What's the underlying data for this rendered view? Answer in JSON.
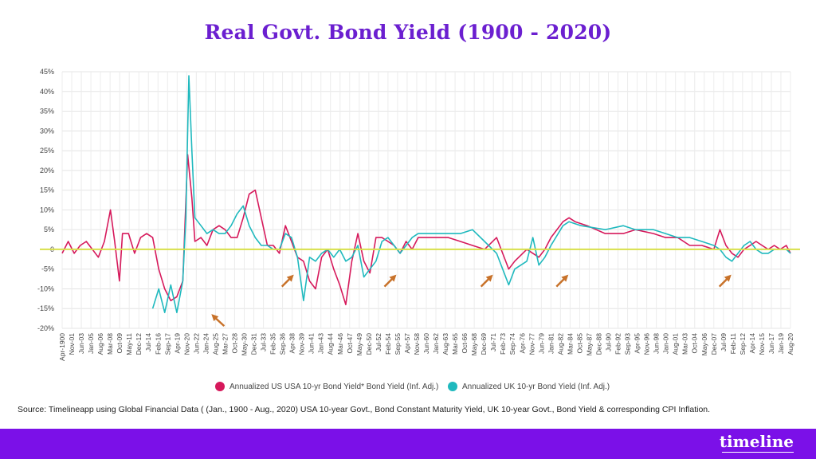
{
  "title": "Real Govt. Bond Yield  (1900 - 2020)",
  "chart_data": {
    "type": "line",
    "ylim": [
      -20,
      45
    ],
    "y_ticks": [
      "45%",
      "40%",
      "35%",
      "30%",
      "25%",
      "20%",
      "15%",
      "10%",
      "5%",
      "0",
      "-5%",
      "-10%",
      "-15%",
      "-20%"
    ],
    "x_ticks": [
      "Apr-1900",
      "Nov-01",
      "Jun-03",
      "Jan-05",
      "Aug-06",
      "Mar-08",
      "Oct-09",
      "May-11",
      "Dec-12",
      "Jul-14",
      "Feb-16",
      "Sep-17",
      "Apr-19",
      "Nov-20",
      "Jun-22",
      "Jan-24",
      "Aug-25",
      "Mar-27",
      "Oct-28",
      "May-30",
      "Dec-31",
      "Jul-33",
      "Feb-35",
      "Sep-36",
      "Apr-38",
      "Nov-39",
      "Jun-41",
      "Jan-43",
      "Aug-44",
      "Mar-46",
      "Oct-47",
      "May-49",
      "Dec-50",
      "Jul-52",
      "Feb-54",
      "Sep-55",
      "Apr-57",
      "Nov-58",
      "Jun-60",
      "Jan-62",
      "Aug-63",
      "Mar-65",
      "Oct-66",
      "May-68",
      "Dec-69",
      "Jul-71",
      "Feb-73",
      "Sep-74",
      "Apr-76",
      "Nov-77",
      "Jun-79",
      "Jan-81",
      "Aug-82",
      "Mar-84",
      "Oct-85",
      "May-87",
      "Dec-88",
      "Jul-90",
      "Feb-92",
      "Sep-93",
      "Apr-95",
      "Nov-96",
      "Jun-98",
      "Jan-00",
      "Aug-01",
      "Mar-03",
      "Oct-04",
      "May-06",
      "Dec-07",
      "Jul-09",
      "Feb-11",
      "Sep-12",
      "Apr-14",
      "Nov-15",
      "Jun-17",
      "Jan-19",
      "Aug-20"
    ],
    "x_range": [
      1900,
      2020.7
    ],
    "grid": true,
    "zero_line_color": "#d8e04a",
    "legend_position": "bottom",
    "series": [
      {
        "name": "Annualized US USA 10-yr Bond Yield* Bond Yield (Inf. Adj.)",
        "color": "#d6195b",
        "points": [
          [
            1900,
            -1
          ],
          [
            1901,
            2
          ],
          [
            1902,
            -1
          ],
          [
            1903,
            1
          ],
          [
            1904,
            2
          ],
          [
            1905,
            0
          ],
          [
            1906,
            -2
          ],
          [
            1907,
            2
          ],
          [
            1908,
            10
          ],
          [
            1908.7,
            2
          ],
          [
            1909.5,
            -8
          ],
          [
            1910,
            4
          ],
          [
            1911,
            4
          ],
          [
            1912,
            -1
          ],
          [
            1913,
            3
          ],
          [
            1914,
            4
          ],
          [
            1915,
            3
          ],
          [
            1916,
            -5
          ],
          [
            1917,
            -10
          ],
          [
            1918,
            -13
          ],
          [
            1919,
            -12
          ],
          [
            1920,
            -8
          ],
          [
            1920.8,
            24
          ],
          [
            1921.5,
            13
          ],
          [
            1922,
            2
          ],
          [
            1923,
            3
          ],
          [
            1924,
            1
          ],
          [
            1925,
            5
          ],
          [
            1926,
            6
          ],
          [
            1927,
            5
          ],
          [
            1928,
            3
          ],
          [
            1929,
            3
          ],
          [
            1930,
            8
          ],
          [
            1931,
            14
          ],
          [
            1932,
            15
          ],
          [
            1933,
            8
          ],
          [
            1934,
            1
          ],
          [
            1935,
            1
          ],
          [
            1936,
            -1
          ],
          [
            1937,
            6
          ],
          [
            1938,
            2
          ],
          [
            1939,
            -2
          ],
          [
            1940,
            -3
          ],
          [
            1941,
            -8
          ],
          [
            1942,
            -10
          ],
          [
            1943,
            -2
          ],
          [
            1944,
            0
          ],
          [
            1945,
            -5
          ],
          [
            1946,
            -9
          ],
          [
            1947,
            -14
          ],
          [
            1948,
            -3
          ],
          [
            1949,
            4
          ],
          [
            1950,
            -3
          ],
          [
            1951,
            -6
          ],
          [
            1952,
            3
          ],
          [
            1953,
            3
          ],
          [
            1954,
            2
          ],
          [
            1955,
            1
          ],
          [
            1956,
            -1
          ],
          [
            1957,
            2
          ],
          [
            1958,
            0
          ],
          [
            1959,
            3
          ],
          [
            1960,
            3
          ],
          [
            1962,
            3
          ],
          [
            1964,
            3
          ],
          [
            1966,
            2
          ],
          [
            1968,
            1
          ],
          [
            1970,
            0
          ],
          [
            1972,
            3
          ],
          [
            1974,
            -5
          ],
          [
            1975,
            -3
          ],
          [
            1977,
            0
          ],
          [
            1979,
            -2
          ],
          [
            1980,
            0
          ],
          [
            1981,
            3
          ],
          [
            1983,
            7
          ],
          [
            1984,
            8
          ],
          [
            1985,
            7
          ],
          [
            1987,
            6
          ],
          [
            1990,
            4
          ],
          [
            1993,
            4
          ],
          [
            1995,
            5
          ],
          [
            1998,
            4
          ],
          [
            2000,
            3
          ],
          [
            2002,
            3
          ],
          [
            2004,
            1
          ],
          [
            2006,
            1
          ],
          [
            2008,
            0
          ],
          [
            2009,
            5
          ],
          [
            2010,
            1
          ],
          [
            2011,
            -1
          ],
          [
            2012,
            -2
          ],
          [
            2013,
            0
          ],
          [
            2014,
            1
          ],
          [
            2015,
            2
          ],
          [
            2016,
            1
          ],
          [
            2017,
            0
          ],
          [
            2018,
            1
          ],
          [
            2019,
            0
          ],
          [
            2020,
            1
          ],
          [
            2020.7,
            -1
          ]
        ]
      },
      {
        "name": "Annualized UK 10-yr Bond Yield (Inf. Adj.)",
        "color": "#1fb9be",
        "points": [
          [
            1915,
            -15
          ],
          [
            1916,
            -10
          ],
          [
            1917,
            -16
          ],
          [
            1918,
            -9
          ],
          [
            1919,
            -16
          ],
          [
            1920,
            -8
          ],
          [
            1920.5,
            8
          ],
          [
            1921,
            44
          ],
          [
            1921.5,
            25
          ],
          [
            1922,
            8
          ],
          [
            1923,
            6
          ],
          [
            1924,
            4
          ],
          [
            1925,
            5
          ],
          [
            1926,
            4
          ],
          [
            1927,
            4
          ],
          [
            1928,
            6
          ],
          [
            1929,
            9
          ],
          [
            1930,
            11
          ],
          [
            1931,
            6
          ],
          [
            1932,
            3
          ],
          [
            1933,
            1
          ],
          [
            1934,
            1
          ],
          [
            1935,
            0
          ],
          [
            1936,
            0
          ],
          [
            1937,
            4
          ],
          [
            1938,
            3
          ],
          [
            1939,
            -2
          ],
          [
            1940,
            -13
          ],
          [
            1941,
            -2
          ],
          [
            1942,
            -3
          ],
          [
            1943,
            -1
          ],
          [
            1944,
            0
          ],
          [
            1945,
            -2
          ],
          [
            1946,
            0
          ],
          [
            1947,
            -3
          ],
          [
            1948,
            -2
          ],
          [
            1949,
            1
          ],
          [
            1950,
            -7
          ],
          [
            1951,
            -5
          ],
          [
            1952,
            -3
          ],
          [
            1953,
            2
          ],
          [
            1954,
            3
          ],
          [
            1955,
            1
          ],
          [
            1956,
            -1
          ],
          [
            1957,
            1
          ],
          [
            1958,
            3
          ],
          [
            1959,
            4
          ],
          [
            1960,
            4
          ],
          [
            1962,
            4
          ],
          [
            1964,
            4
          ],
          [
            1966,
            4
          ],
          [
            1968,
            5
          ],
          [
            1970,
            2
          ],
          [
            1972,
            -1
          ],
          [
            1973,
            -5
          ],
          [
            1974,
            -9
          ],
          [
            1975,
            -5
          ],
          [
            1977,
            -3
          ],
          [
            1978,
            3
          ],
          [
            1979,
            -4
          ],
          [
            1980,
            -2
          ],
          [
            1981,
            1
          ],
          [
            1983,
            6
          ],
          [
            1984,
            7
          ],
          [
            1986,
            6
          ],
          [
            1990,
            5
          ],
          [
            1993,
            6
          ],
          [
            1995,
            5
          ],
          [
            1998,
            5
          ],
          [
            2000,
            4
          ],
          [
            2002,
            3
          ],
          [
            2004,
            3
          ],
          [
            2006,
            2
          ],
          [
            2008,
            1
          ],
          [
            2009,
            0
          ],
          [
            2010,
            -2
          ],
          [
            2011,
            -3
          ],
          [
            2012,
            -1
          ],
          [
            2013,
            1
          ],
          [
            2014,
            2
          ],
          [
            2015,
            0
          ],
          [
            2016,
            -1
          ],
          [
            2017,
            -1
          ],
          [
            2018,
            0
          ],
          [
            2019,
            0
          ],
          [
            2020,
            0
          ],
          [
            2020.7,
            -1
          ]
        ]
      }
    ],
    "annotations": [
      {
        "type": "arrow",
        "x": 1925,
        "y": -17
      },
      {
        "type": "arrow",
        "x": 1938,
        "y": -7
      },
      {
        "type": "arrow",
        "x": 1955,
        "y": -7
      },
      {
        "type": "arrow",
        "x": 1971,
        "y": -7
      },
      {
        "type": "arrow",
        "x": 1983.5,
        "y": -7
      },
      {
        "type": "arrow",
        "x": 2010.5,
        "y": -7
      }
    ],
    "annotation_color": "#c8722a"
  },
  "legend": {
    "us_label": "Annualized US USA 10-yr Bond Yield* Bond Yield (Inf. Adj.)",
    "uk_label": "Annualized UK 10-yr Bond Yield (Inf. Adj.)",
    "us_color": "#d6195b",
    "uk_color": "#1fb9be"
  },
  "source": "Source: Timelineapp using Global Financial Data ( (Jan., 1900 - Aug., 2020) USA 10-year Govt., Bond Constant Maturity Yield, UK 10-year Govt., Bond Yield & corresponding CPI Inflation.",
  "brand": "timeline"
}
